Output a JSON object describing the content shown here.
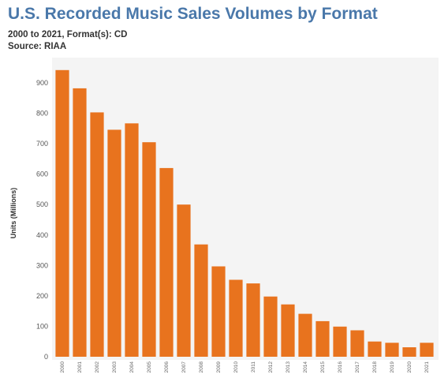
{
  "header": {
    "title": "U.S. Recorded Music Sales Volumes by Format",
    "subtitle": "2000 to 2021, Format(s): CD",
    "source": "Source: RIAA"
  },
  "chart_data": {
    "type": "bar",
    "title": "U.S. Recorded Music Sales Volumes by Format",
    "ylabel": "Units (Millions)",
    "xlabel": "",
    "categories": [
      "2000",
      "2001",
      "2002",
      "2003",
      "2004",
      "2005",
      "2006",
      "2007",
      "2008",
      "2009",
      "2010",
      "2011",
      "2012",
      "2013",
      "2014",
      "2015",
      "2016",
      "2017",
      "2018",
      "2019",
      "2020",
      "2021"
    ],
    "values": [
      942,
      882,
      803,
      746,
      767,
      705,
      620,
      500,
      369,
      297,
      253,
      241,
      198,
      172,
      141,
      117,
      99,
      87,
      50,
      46,
      31,
      46
    ],
    "yticks": [
      0,
      100,
      200,
      300,
      400,
      500,
      600,
      700,
      800,
      900
    ],
    "ylim": [
      0,
      970
    ],
    "bar_color": "#e8731e",
    "plot_background": "#f4f4f4",
    "grid": false
  }
}
